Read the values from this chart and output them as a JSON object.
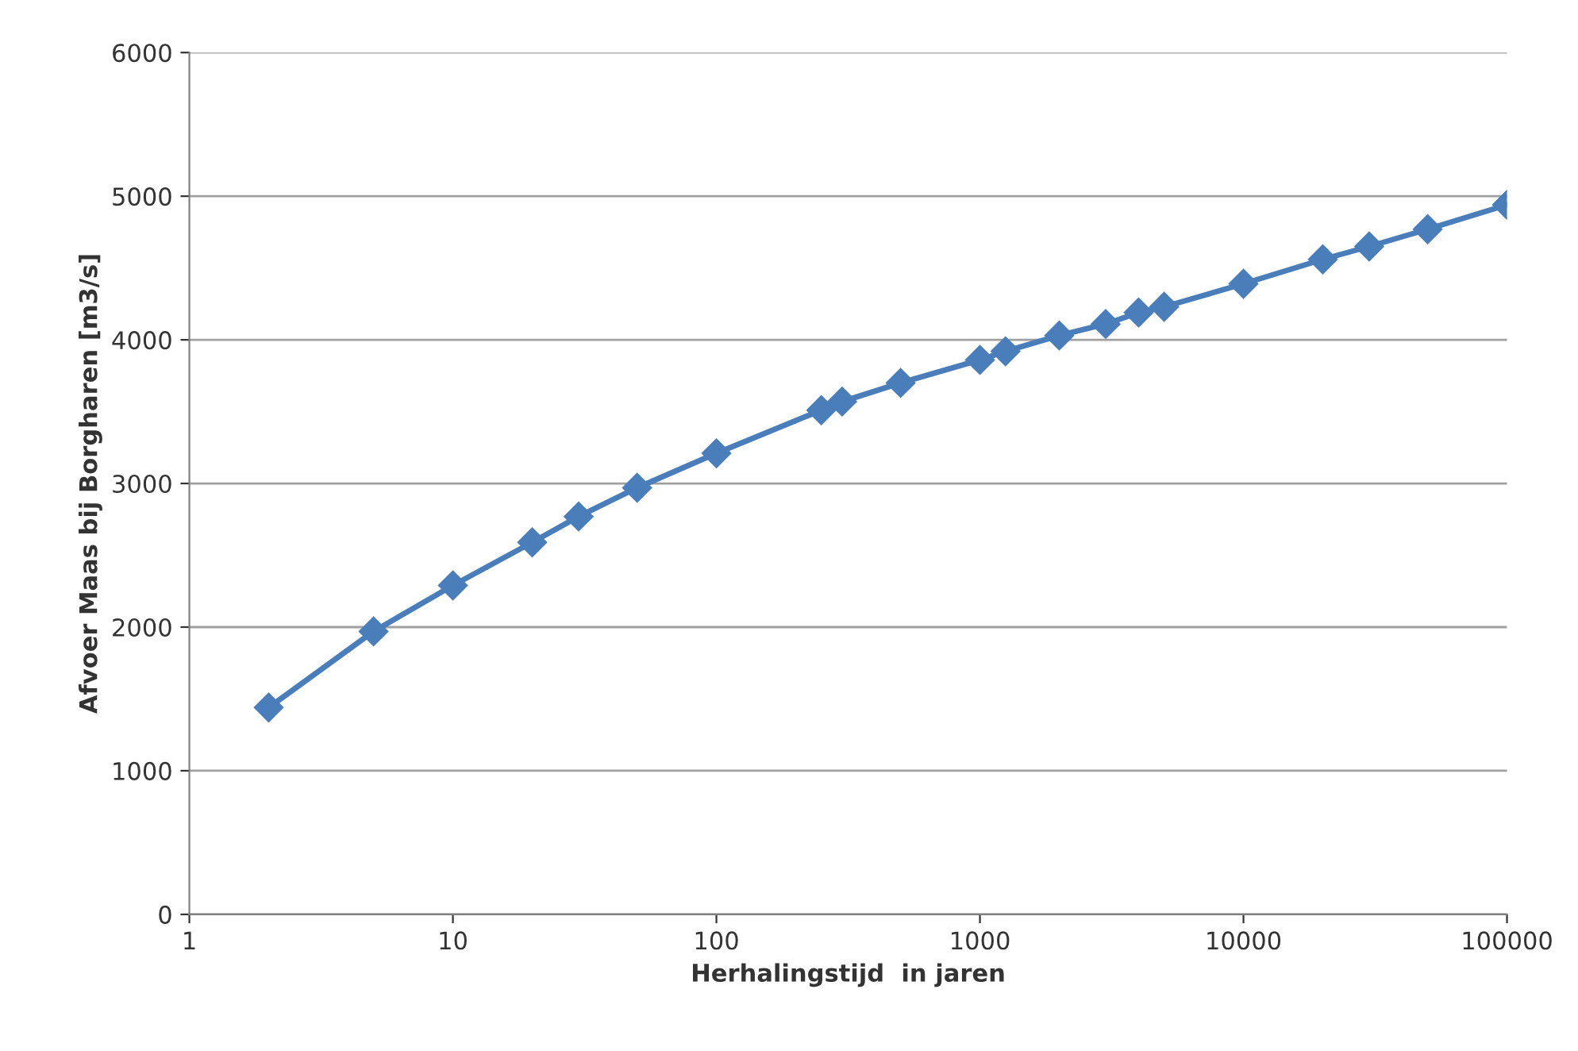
{
  "chart_data": {
    "type": "line",
    "xlabel": "Herhalingstijd  in jaren",
    "ylabel": "Afvoer Maas bij Borgharen [m3/s]",
    "x": [
      2,
      5,
      10,
      20,
      30,
      50,
      100,
      250,
      300,
      500,
      1000,
      1250,
      2000,
      3000,
      4000,
      5000,
      10000,
      20000,
      30000,
      50000,
      100000
    ],
    "series": [
      {
        "color": "#4a7ebb",
        "values": [
          1440,
          1970,
          2290,
          2590,
          2770,
          2970,
          3210,
          3510,
          3570,
          3700,
          3860,
          3920,
          4030,
          4110,
          4190,
          4230,
          4390,
          4560,
          4650,
          4770,
          4940
        ]
      }
    ],
    "log": "x",
    "xlim": [
      1,
      100000
    ],
    "xticks": [
      1,
      10,
      100,
      1000,
      10000,
      100000
    ],
    "ylim": [
      0,
      6000
    ],
    "yticks": [
      0,
      1000,
      2000,
      3000,
      4000,
      5000,
      6000
    ],
    "grid": "y",
    "marker": "diamond",
    "line_style": "solid"
  }
}
